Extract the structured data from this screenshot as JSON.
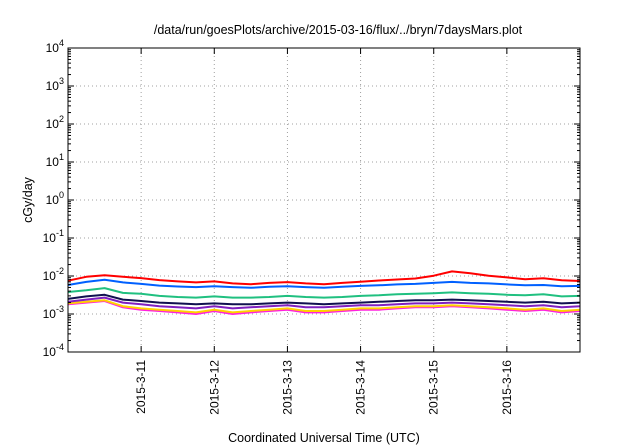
{
  "chart_data": {
    "type": "line",
    "title": "/data/run/goesPlots/archive/2015-03-16/flux/../bryn/7daysMars.plot",
    "xlabel": "Coordinated Universal Time (UTC)",
    "ylabel": "cGy/day",
    "yscale": "log",
    "ylim": [
      0.0001,
      10000
    ],
    "yticks": [
      {
        "base": "10",
        "exp": "-4"
      },
      {
        "base": "10",
        "exp": "-3"
      },
      {
        "base": "10",
        "exp": "-2"
      },
      {
        "base": "10",
        "exp": "-1"
      },
      {
        "base": "10",
        "exp": "0"
      },
      {
        "base": "10",
        "exp": "1"
      },
      {
        "base": "10",
        "exp": "2"
      },
      {
        "base": "10",
        "exp": "3"
      },
      {
        "base": "10",
        "exp": "4"
      }
    ],
    "xlim": [
      "2015-03-10T00:00",
      "2015-03-17T00:00"
    ],
    "xticks": [
      "2015-3-11",
      "2015-3-12",
      "2015-3-13",
      "2015-3-14",
      "2015-3-15",
      "2015-3-16"
    ],
    "grid": true,
    "series": [
      {
        "color": "#ff0000",
        "t": [
          0,
          6,
          12,
          18,
          24,
          30,
          36,
          42,
          48,
          54,
          60,
          66,
          72,
          78,
          84,
          90,
          96,
          102,
          108,
          114,
          120,
          126,
          132,
          138,
          144,
          150,
          156,
          162,
          168
        ],
        "values": [
          0.0075,
          0.0095,
          0.0105,
          0.0095,
          0.0088,
          0.0078,
          0.0072,
          0.0068,
          0.0072,
          0.0064,
          0.0061,
          0.0066,
          0.0069,
          0.0064,
          0.0061,
          0.0066,
          0.0071,
          0.0076,
          0.0081,
          0.0086,
          0.0102,
          0.0132,
          0.0118,
          0.0102,
          0.0092,
          0.0082,
          0.0087,
          0.0077,
          0.0074
        ]
      },
      {
        "color": "#0060ff",
        "t": [
          0,
          6,
          12,
          18,
          24,
          30,
          36,
          42,
          48,
          54,
          60,
          66,
          72,
          78,
          84,
          90,
          96,
          102,
          108,
          114,
          120,
          126,
          132,
          138,
          144,
          150,
          156,
          162,
          168
        ],
        "values": [
          0.0058,
          0.007,
          0.008,
          0.0068,
          0.0062,
          0.0056,
          0.0053,
          0.0051,
          0.0054,
          0.0051,
          0.0049,
          0.0052,
          0.0054,
          0.0051,
          0.0049,
          0.0052,
          0.0055,
          0.0057,
          0.006,
          0.0062,
          0.0066,
          0.007,
          0.0066,
          0.0064,
          0.006,
          0.0057,
          0.0058,
          0.0054,
          0.0055
        ]
      },
      {
        "color": "#20c080",
        "t": [
          0,
          6,
          12,
          18,
          24,
          30,
          36,
          42,
          48,
          54,
          60,
          66,
          72,
          78,
          84,
          90,
          96,
          102,
          108,
          114,
          120,
          126,
          132,
          138,
          144,
          150,
          156,
          162,
          168
        ],
        "values": [
          0.0038,
          0.0042,
          0.0048,
          0.0036,
          0.0034,
          0.003,
          0.0028,
          0.0027,
          0.0029,
          0.0027,
          0.0027,
          0.0028,
          0.003,
          0.0028,
          0.0027,
          0.0028,
          0.003,
          0.0031,
          0.0033,
          0.0034,
          0.0035,
          0.0037,
          0.0035,
          0.0034,
          0.0032,
          0.0031,
          0.0033,
          0.0029,
          0.003
        ]
      },
      {
        "color": "#101050",
        "t": [
          0,
          6,
          12,
          18,
          24,
          30,
          36,
          42,
          48,
          54,
          60,
          66,
          72,
          78,
          84,
          90,
          96,
          102,
          108,
          114,
          120,
          126,
          132,
          138,
          144,
          150,
          156,
          162,
          168
        ],
        "values": [
          0.0025,
          0.0029,
          0.0032,
          0.0024,
          0.0022,
          0.002,
          0.0019,
          0.0018,
          0.0019,
          0.0018,
          0.0018,
          0.0019,
          0.002,
          0.0019,
          0.0018,
          0.0019,
          0.002,
          0.0021,
          0.0022,
          0.0023,
          0.0023,
          0.0024,
          0.0023,
          0.0022,
          0.0021,
          0.002,
          0.0021,
          0.0019,
          0.002
        ]
      },
      {
        "color": "#8020c0",
        "t": [
          0,
          6,
          12,
          18,
          24,
          30,
          36,
          42,
          48,
          54,
          60,
          66,
          72,
          78,
          84,
          90,
          96,
          102,
          108,
          114,
          120,
          126,
          132,
          138,
          144,
          150,
          156,
          162,
          168
        ],
        "values": [
          0.0021,
          0.0024,
          0.0027,
          0.002,
          0.0018,
          0.0016,
          0.0015,
          0.0014,
          0.0016,
          0.0014,
          0.0015,
          0.0016,
          0.0017,
          0.0015,
          0.0015,
          0.0016,
          0.0017,
          0.0017,
          0.0018,
          0.0019,
          0.0019,
          0.002,
          0.0019,
          0.0018,
          0.0017,
          0.0016,
          0.0017,
          0.0015,
          0.0016
        ]
      },
      {
        "color": "#ffd000",
        "t": [
          0,
          6,
          12,
          18,
          24,
          30,
          36,
          42,
          48,
          54,
          60,
          66,
          72,
          78,
          84,
          90,
          96,
          102,
          108,
          114,
          120,
          126,
          132,
          138,
          144,
          150,
          156,
          162,
          168
        ],
        "values": [
          0.0019,
          0.0021,
          0.0023,
          0.0016,
          0.0014,
          0.0013,
          0.0012,
          0.0011,
          0.0013,
          0.0011,
          0.0012,
          0.0013,
          0.0014,
          0.0012,
          0.0012,
          0.0013,
          0.0014,
          0.0014,
          0.0015,
          0.0016,
          0.0016,
          0.0017,
          0.0016,
          0.0015,
          0.0014,
          0.0013,
          0.0014,
          0.0012,
          0.0013
        ]
      },
      {
        "color": "#ff20e0",
        "t": [
          0,
          6,
          12,
          18,
          24,
          30,
          36,
          42,
          48,
          54,
          60,
          66,
          72,
          78,
          84,
          90,
          96,
          102,
          108,
          114,
          120,
          126,
          132,
          138,
          144,
          150,
          156,
          162,
          168
        ],
        "values": [
          0.0018,
          0.002,
          0.0022,
          0.0015,
          0.0013,
          0.0012,
          0.0011,
          0.001,
          0.0012,
          0.001,
          0.0011,
          0.0012,
          0.0013,
          0.0011,
          0.0011,
          0.0012,
          0.0013,
          0.0013,
          0.0014,
          0.0015,
          0.0015,
          0.0016,
          0.0015,
          0.0014,
          0.0013,
          0.0012,
          0.0013,
          0.0011,
          0.0012
        ]
      }
    ]
  }
}
